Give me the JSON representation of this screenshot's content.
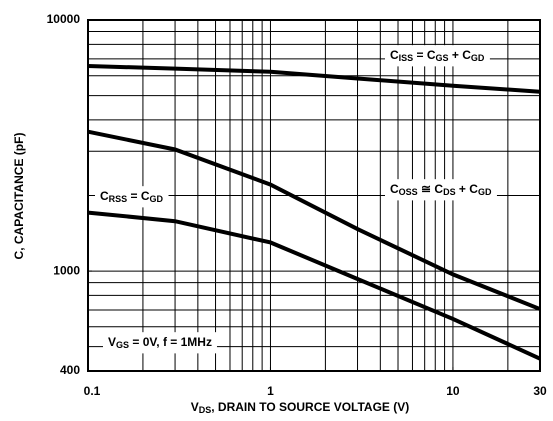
{
  "chart_data": {
    "type": "line",
    "xscale": "log",
    "yscale": "log",
    "ylabel": "C, CAPACITANCE (pF)",
    "xlabel": [
      "V",
      "DS",
      ", DRAIN TO SOURCE VOLTAGE (V)"
    ],
    "xlim": [
      0.1,
      30
    ],
    "ylim": [
      400,
      10000
    ],
    "xticks": [
      0.1,
      1,
      10,
      30
    ],
    "yticks": [
      400,
      1000,
      10000
    ],
    "xgrid": [
      0.2,
      0.3,
      0.4,
      0.5,
      0.6,
      0.7,
      0.8,
      0.9,
      1,
      2,
      3,
      4,
      5,
      6,
      7,
      8,
      9,
      10,
      20
    ],
    "ygrid": [
      500,
      600,
      700,
      800,
      900,
      1000,
      2000,
      3000,
      4000,
      5000,
      6000,
      7000,
      8000,
      9000
    ],
    "x": [
      0.1,
      0.3,
      1,
      3,
      10,
      30
    ],
    "series": [
      {
        "name": [
          "C",
          "ISS",
          " = C",
          "GS",
          " + C",
          "GD"
        ],
        "color": "#000000",
        "values": [
          6560,
          6400,
          6220,
          5850,
          5470,
          5180
        ]
      },
      {
        "name": [
          "C",
          "OSS",
          " ≅ C",
          "DS",
          " + C",
          "GD"
        ],
        "color": "#000000",
        "values": [
          3590,
          3050,
          2210,
          1470,
          970,
          706
        ]
      },
      {
        "name": [
          "C",
          "RSS",
          " = C",
          "GD"
        ],
        "color": "#000000",
        "values": [
          1710,
          1580,
          1300,
          930,
          645,
          448
        ]
      }
    ],
    "annotations": [
      [
        "V",
        "GS",
        " = 0V, f = 1MHz"
      ]
    ]
  }
}
